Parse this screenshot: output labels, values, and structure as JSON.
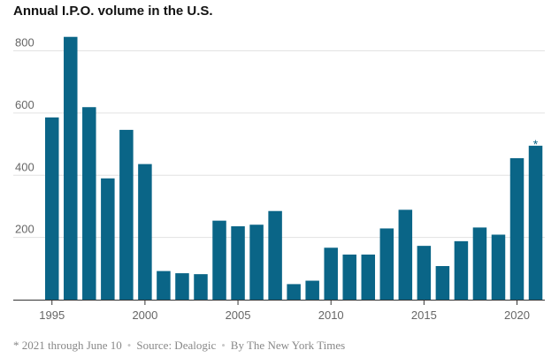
{
  "chart_data": {
    "type": "bar",
    "title": "Annual I.P.O. volume in the U.S.",
    "categories": [
      1995,
      1996,
      1997,
      1998,
      1999,
      2000,
      2001,
      2002,
      2003,
      2004,
      2005,
      2006,
      2007,
      2008,
      2009,
      2010,
      2011,
      2012,
      2013,
      2014,
      2015,
      2016,
      2017,
      2018,
      2019,
      2020,
      2021
    ],
    "values": [
      586,
      845,
      619,
      390,
      546,
      436,
      92,
      85,
      82,
      254,
      236,
      241,
      285,
      50,
      61,
      167,
      145,
      145,
      229,
      289,
      173,
      108,
      188,
      232,
      209,
      455,
      495
    ],
    "ylim": [
      0,
      880
    ],
    "y_ticks": [
      200,
      400,
      600,
      800
    ],
    "x_ticks": [
      1995,
      2000,
      2005,
      2010,
      2015,
      2020
    ],
    "grid": true,
    "annotations": [
      {
        "category": 2021,
        "text": "*"
      }
    ],
    "bar_color": "#0a6587"
  },
  "footer": {
    "note": "* 2021 through June 10",
    "source": "Source:  Dealogic",
    "credit": "By The New York Times",
    "separator": "•"
  }
}
